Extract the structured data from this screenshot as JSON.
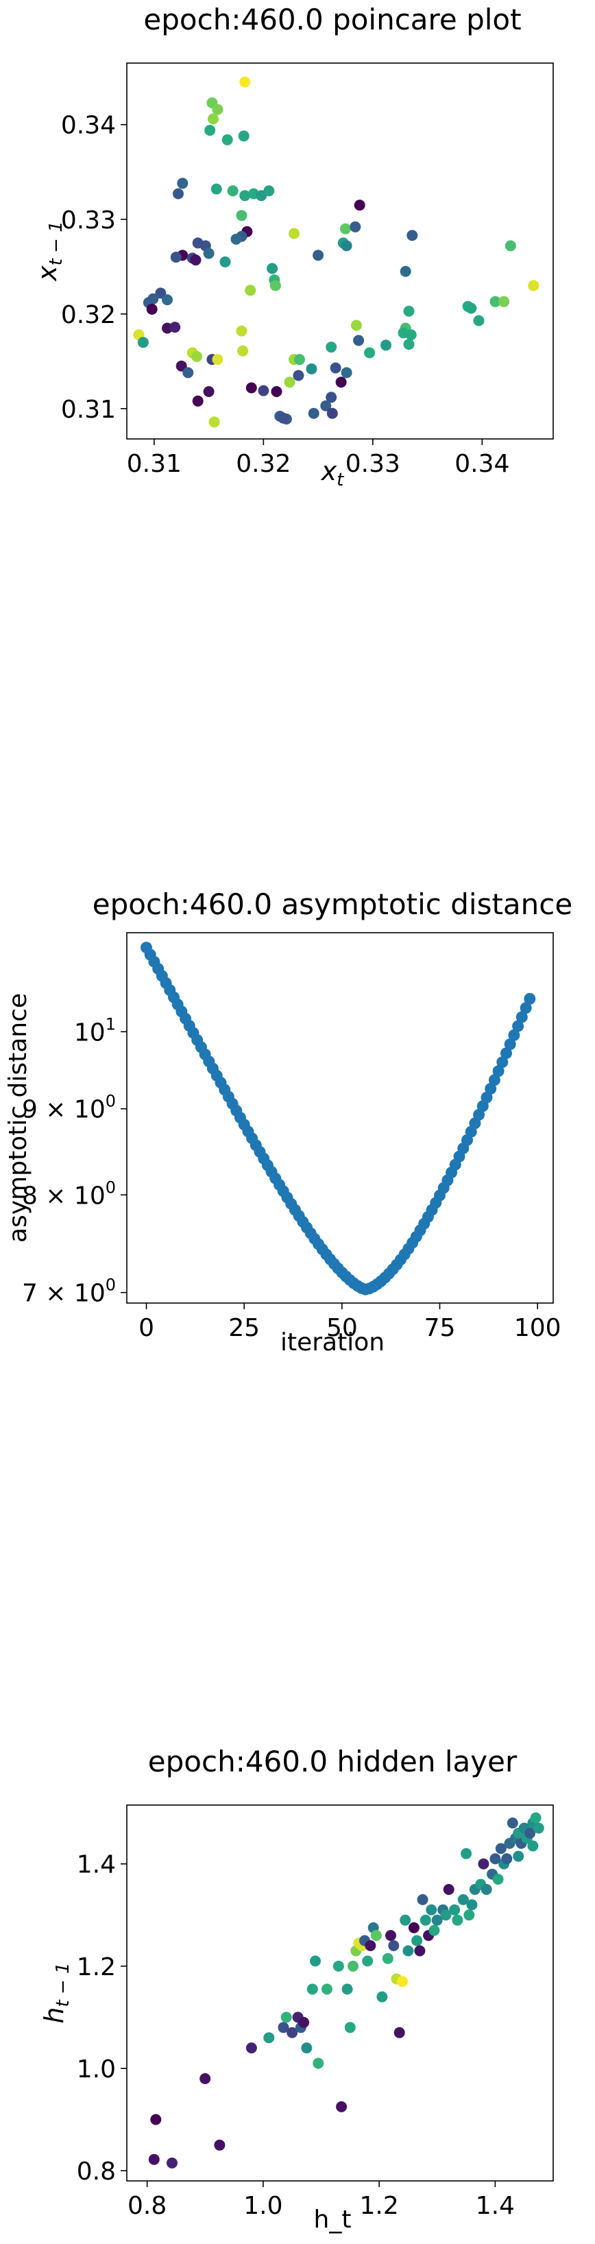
{
  "chart_data": [
    {
      "type": "scatter",
      "title": "epoch:460.0 poincare plot",
      "xlabel": "x",
      "xlabel_sub": "t",
      "ylabel": "x",
      "ylabel_sub": "t − 1",
      "xlim": [
        0.3075,
        0.3465
      ],
      "ylim": [
        0.3068,
        0.3465
      ],
      "xticks": [
        0.31,
        0.32,
        0.33,
        0.34
      ],
      "xtick_labels": [
        "0.31",
        "0.32",
        "0.33",
        "0.34"
      ],
      "yticks": [
        0.31,
        0.32,
        0.33,
        0.34
      ],
      "ytick_labels": [
        "0.31",
        "0.32",
        "0.33",
        "0.34"
      ],
      "colormap": "viridis",
      "grid": false,
      "points": [
        {
          "x": 0.3183,
          "y": 0.3445,
          "c": 1.0
        },
        {
          "x": 0.3153,
          "y": 0.3423,
          "c": 0.78
        },
        {
          "x": 0.3158,
          "y": 0.3416,
          "c": 0.8
        },
        {
          "x": 0.3154,
          "y": 0.3406,
          "c": 0.83
        },
        {
          "x": 0.3151,
          "y": 0.3394,
          "c": 0.62
        },
        {
          "x": 0.3167,
          "y": 0.3384,
          "c": 0.62
        },
        {
          "x": 0.3182,
          "y": 0.3388,
          "c": 0.6
        },
        {
          "x": 0.3126,
          "y": 0.3338,
          "c": 0.33
        },
        {
          "x": 0.3122,
          "y": 0.3327,
          "c": 0.28
        },
        {
          "x": 0.3157,
          "y": 0.3332,
          "c": 0.6
        },
        {
          "x": 0.3172,
          "y": 0.333,
          "c": 0.65
        },
        {
          "x": 0.3183,
          "y": 0.3325,
          "c": 0.6
        },
        {
          "x": 0.3191,
          "y": 0.3327,
          "c": 0.62
        },
        {
          "x": 0.3198,
          "y": 0.3325,
          "c": 0.55
        },
        {
          "x": 0.3205,
          "y": 0.333,
          "c": 0.58
        },
        {
          "x": 0.318,
          "y": 0.3304,
          "c": 0.7
        },
        {
          "x": 0.3288,
          "y": 0.3315,
          "c": 0.0
        },
        {
          "x": 0.3275,
          "y": 0.329,
          "c": 0.75
        },
        {
          "x": 0.3284,
          "y": 0.3292,
          "c": 0.3
        },
        {
          "x": 0.3336,
          "y": 0.3283,
          "c": 0.3
        },
        {
          "x": 0.3228,
          "y": 0.3285,
          "c": 0.9
        },
        {
          "x": 0.3185,
          "y": 0.3287,
          "c": 0.0
        },
        {
          "x": 0.318,
          "y": 0.3282,
          "c": 0.3
        },
        {
          "x": 0.3175,
          "y": 0.3279,
          "c": 0.35
        },
        {
          "x": 0.3273,
          "y": 0.3275,
          "c": 0.55
        },
        {
          "x": 0.3276,
          "y": 0.3272,
          "c": 0.45
        },
        {
          "x": 0.3147,
          "y": 0.3272,
          "c": 0.25
        },
        {
          "x": 0.314,
          "y": 0.3275,
          "c": 0.25
        },
        {
          "x": 0.315,
          "y": 0.3264,
          "c": 0.35
        },
        {
          "x": 0.3126,
          "y": 0.3262,
          "c": 0.0
        },
        {
          "x": 0.3135,
          "y": 0.3259,
          "c": 0.2
        },
        {
          "x": 0.3138,
          "y": 0.3257,
          "c": 0.05
        },
        {
          "x": 0.312,
          "y": 0.326,
          "c": 0.25
        },
        {
          "x": 0.3165,
          "y": 0.3255,
          "c": 0.55
        },
        {
          "x": 0.325,
          "y": 0.3262,
          "c": 0.3
        },
        {
          "x": 0.3426,
          "y": 0.3272,
          "c": 0.7
        },
        {
          "x": 0.3208,
          "y": 0.3248,
          "c": 0.55
        },
        {
          "x": 0.333,
          "y": 0.3245,
          "c": 0.35
        },
        {
          "x": 0.321,
          "y": 0.3236,
          "c": 0.65
        },
        {
          "x": 0.3211,
          "y": 0.323,
          "c": 0.75
        },
        {
          "x": 0.3447,
          "y": 0.323,
          "c": 0.95
        },
        {
          "x": 0.3188,
          "y": 0.3225,
          "c": 0.85
        },
        {
          "x": 0.3106,
          "y": 0.3222,
          "c": 0.25
        },
        {
          "x": 0.3099,
          "y": 0.3216,
          "c": 0.3
        },
        {
          "x": 0.3112,
          "y": 0.3215,
          "c": 0.35
        },
        {
          "x": 0.3095,
          "y": 0.3212,
          "c": 0.3
        },
        {
          "x": 0.3412,
          "y": 0.3213,
          "c": 0.7
        },
        {
          "x": 0.342,
          "y": 0.3213,
          "c": 0.8
        },
        {
          "x": 0.3387,
          "y": 0.3208,
          "c": 0.62
        },
        {
          "x": 0.339,
          "y": 0.3206,
          "c": 0.6
        },
        {
          "x": 0.3098,
          "y": 0.3205,
          "c": 0.0
        },
        {
          "x": 0.3333,
          "y": 0.3203,
          "c": 0.62
        },
        {
          "x": 0.3397,
          "y": 0.3193,
          "c": 0.6
        },
        {
          "x": 0.3285,
          "y": 0.3188,
          "c": 0.85
        },
        {
          "x": 0.333,
          "y": 0.3185,
          "c": 0.7
        },
        {
          "x": 0.3328,
          "y": 0.318,
          "c": 0.62
        },
        {
          "x": 0.3335,
          "y": 0.3178,
          "c": 0.62
        },
        {
          "x": 0.3112,
          "y": 0.3185,
          "c": 0.05
        },
        {
          "x": 0.3119,
          "y": 0.3186,
          "c": 0.1
        },
        {
          "x": 0.318,
          "y": 0.3182,
          "c": 0.9
        },
        {
          "x": 0.3287,
          "y": 0.3172,
          "c": 0.3
        },
        {
          "x": 0.3086,
          "y": 0.3178,
          "c": 0.95
        },
        {
          "x": 0.309,
          "y": 0.317,
          "c": 0.55
        },
        {
          "x": 0.3312,
          "y": 0.3167,
          "c": 0.55
        },
        {
          "x": 0.3262,
          "y": 0.3165,
          "c": 0.6
        },
        {
          "x": 0.3333,
          "y": 0.3168,
          "c": 0.62
        },
        {
          "x": 0.3297,
          "y": 0.3159,
          "c": 0.62
        },
        {
          "x": 0.3181,
          "y": 0.3161,
          "c": 0.9
        },
        {
          "x": 0.3135,
          "y": 0.3159,
          "c": 0.9
        },
        {
          "x": 0.3139,
          "y": 0.3155,
          "c": 0.85
        },
        {
          "x": 0.3153,
          "y": 0.3152,
          "c": 0.2
        },
        {
          "x": 0.3158,
          "y": 0.3152,
          "c": 0.95
        },
        {
          "x": 0.3228,
          "y": 0.3152,
          "c": 0.85
        },
        {
          "x": 0.3233,
          "y": 0.3152,
          "c": 0.7
        },
        {
          "x": 0.3244,
          "y": 0.3142,
          "c": 0.5
        },
        {
          "x": 0.3232,
          "y": 0.3135,
          "c": 0.25
        },
        {
          "x": 0.3125,
          "y": 0.3145,
          "c": 0.05
        },
        {
          "x": 0.3131,
          "y": 0.3138,
          "c": 0.3
        },
        {
          "x": 0.3266,
          "y": 0.3143,
          "c": 0.25
        },
        {
          "x": 0.3276,
          "y": 0.3138,
          "c": 0.35
        },
        {
          "x": 0.3271,
          "y": 0.3128,
          "c": 0.0
        },
        {
          "x": 0.3224,
          "y": 0.3128,
          "c": 0.85
        },
        {
          "x": 0.3189,
          "y": 0.3122,
          "c": 0.0
        },
        {
          "x": 0.32,
          "y": 0.3119,
          "c": 0.2
        },
        {
          "x": 0.3212,
          "y": 0.3118,
          "c": 0.0
        },
        {
          "x": 0.315,
          "y": 0.3118,
          "c": 0.05
        },
        {
          "x": 0.314,
          "y": 0.3108,
          "c": 0.0
        },
        {
          "x": 0.3262,
          "y": 0.3112,
          "c": 0.25
        },
        {
          "x": 0.3257,
          "y": 0.3103,
          "c": 0.3
        },
        {
          "x": 0.3263,
          "y": 0.3095,
          "c": 0.2
        },
        {
          "x": 0.3246,
          "y": 0.3095,
          "c": 0.3
        },
        {
          "x": 0.3215,
          "y": 0.3092,
          "c": 0.3
        },
        {
          "x": 0.3221,
          "y": 0.3089,
          "c": 0.3
        },
        {
          "x": 0.3155,
          "y": 0.3086,
          "c": 0.9
        },
        {
          "x": 0.3218,
          "y": 0.309,
          "c": 0.25
        }
      ]
    },
    {
      "type": "scatter",
      "title": "epoch:460.0 asymptotic distance",
      "xlabel": "iteration",
      "ylabel": "asymptotic distance",
      "yscale": "log",
      "xlim": [
        -5,
        104
      ],
      "ylim": [
        6.9,
        11.45
      ],
      "xticks": [
        0,
        25,
        50,
        75,
        100
      ],
      "xtick_labels": [
        "0",
        "25",
        "50",
        "75",
        "100"
      ],
      "yticks": [
        7,
        8,
        9,
        10
      ],
      "ytick_labels": [
        {
          "base": "7 × 10",
          "exp": "0"
        },
        {
          "base": "8 × 10",
          "exp": "0"
        },
        {
          "base": "9 × 10",
          "exp": "0"
        },
        {
          "base": "10",
          "exp": "1"
        }
      ],
      "color": "#1f77b4",
      "grid": false,
      "x_start": 0,
      "x_end": 98,
      "y_min_at": 56,
      "y_start": 11.22,
      "y_min": 7.03,
      "y_end": 10.46
    },
    {
      "type": "scatter",
      "title": "epoch:460.0 hidden layer",
      "xlabel": "h_t",
      "ylabel": "h",
      "ylabel_sub": "t − 1",
      "xlim": [
        0.765,
        1.5
      ],
      "ylim": [
        0.78,
        1.515
      ],
      "xticks": [
        0.8,
        1.0,
        1.2,
        1.4
      ],
      "xtick_labels": [
        "0.8",
        "1.0",
        "1.2",
        "1.4"
      ],
      "yticks": [
        0.8,
        1.0,
        1.2,
        1.4
      ],
      "ytick_labels": [
        "0.8",
        "1.0",
        "1.2",
        "1.4"
      ],
      "colormap": "viridis",
      "grid": false,
      "points": [
        {
          "x": 0.815,
          "y": 0.9,
          "c": 0.0
        },
        {
          "x": 0.812,
          "y": 0.822,
          "c": 0.05
        },
        {
          "x": 0.843,
          "y": 0.815,
          "c": 0.1
        },
        {
          "x": 0.9,
          "y": 0.98,
          "c": 0.05
        },
        {
          "x": 0.925,
          "y": 0.85,
          "c": 0.05
        },
        {
          "x": 0.98,
          "y": 1.04,
          "c": 0.1
        },
        {
          "x": 1.01,
          "y": 1.06,
          "c": 0.55
        },
        {
          "x": 1.035,
          "y": 1.08,
          "c": 0.25
        },
        {
          "x": 1.04,
          "y": 1.1,
          "c": 0.65
        },
        {
          "x": 1.05,
          "y": 1.07,
          "c": 0.2
        },
        {
          "x": 1.06,
          "y": 1.1,
          "c": 0.1
        },
        {
          "x": 1.065,
          "y": 1.08,
          "c": 0.3
        },
        {
          "x": 1.07,
          "y": 1.09,
          "c": 0.05
        },
        {
          "x": 1.075,
          "y": 1.04,
          "c": 0.5
        },
        {
          "x": 1.085,
          "y": 1.155,
          "c": 0.6
        },
        {
          "x": 1.09,
          "y": 1.21,
          "c": 0.55
        },
        {
          "x": 1.095,
          "y": 1.01,
          "c": 0.65
        },
        {
          "x": 1.11,
          "y": 1.155,
          "c": 0.65
        },
        {
          "x": 1.13,
          "y": 1.2,
          "c": 0.6
        },
        {
          "x": 1.135,
          "y": 0.925,
          "c": 0.05
        },
        {
          "x": 1.145,
          "y": 1.155,
          "c": 0.55
        },
        {
          "x": 1.15,
          "y": 1.08,
          "c": 0.6
        },
        {
          "x": 1.155,
          "y": 1.2,
          "c": 0.7
        },
        {
          "x": 1.16,
          "y": 1.23,
          "c": 0.8
        },
        {
          "x": 1.165,
          "y": 1.245,
          "c": 0.95
        },
        {
          "x": 1.17,
          "y": 1.24,
          "c": 0.95
        },
        {
          "x": 1.175,
          "y": 1.25,
          "c": 0.3
        },
        {
          "x": 1.18,
          "y": 1.21,
          "c": 0.6
        },
        {
          "x": 1.185,
          "y": 1.24,
          "c": 0.05
        },
        {
          "x": 1.19,
          "y": 1.275,
          "c": 0.4
        },
        {
          "x": 1.195,
          "y": 1.26,
          "c": 0.75
        },
        {
          "x": 1.205,
          "y": 1.14,
          "c": 0.55
        },
        {
          "x": 1.215,
          "y": 1.215,
          "c": 0.65
        },
        {
          "x": 1.22,
          "y": 1.26,
          "c": 0.05
        },
        {
          "x": 1.225,
          "y": 1.24,
          "c": 0.25
        },
        {
          "x": 1.23,
          "y": 1.175,
          "c": 0.9
        },
        {
          "x": 1.235,
          "y": 1.07,
          "c": 0.05
        },
        {
          "x": 1.24,
          "y": 1.17,
          "c": 1.0
        },
        {
          "x": 1.245,
          "y": 1.29,
          "c": 0.55
        },
        {
          "x": 1.25,
          "y": 1.23,
          "c": 0.5
        },
        {
          "x": 1.26,
          "y": 1.275,
          "c": 0.0
        },
        {
          "x": 1.265,
          "y": 1.25,
          "c": 0.55
        },
        {
          "x": 1.27,
          "y": 1.23,
          "c": 0.05
        },
        {
          "x": 1.275,
          "y": 1.33,
          "c": 0.3
        },
        {
          "x": 1.28,
          "y": 1.29,
          "c": 0.55
        },
        {
          "x": 1.285,
          "y": 1.26,
          "c": 0.05
        },
        {
          "x": 1.29,
          "y": 1.31,
          "c": 0.5
        },
        {
          "x": 1.295,
          "y": 1.27,
          "c": 0.6
        },
        {
          "x": 1.3,
          "y": 1.29,
          "c": 0.45
        },
        {
          "x": 1.31,
          "y": 1.31,
          "c": 0.4
        },
        {
          "x": 1.315,
          "y": 1.3,
          "c": 0.55
        },
        {
          "x": 1.32,
          "y": 1.35,
          "c": 0.05
        },
        {
          "x": 1.33,
          "y": 1.31,
          "c": 0.55
        },
        {
          "x": 1.335,
          "y": 1.29,
          "c": 0.6
        },
        {
          "x": 1.345,
          "y": 1.33,
          "c": 0.5
        },
        {
          "x": 1.35,
          "y": 1.42,
          "c": 0.55
        },
        {
          "x": 1.355,
          "y": 1.3,
          "c": 0.6
        },
        {
          "x": 1.36,
          "y": 1.32,
          "c": 0.5
        },
        {
          "x": 1.365,
          "y": 1.35,
          "c": 0.45
        },
        {
          "x": 1.375,
          "y": 1.36,
          "c": 0.55
        },
        {
          "x": 1.38,
          "y": 1.4,
          "c": 0.1
        },
        {
          "x": 1.385,
          "y": 1.35,
          "c": 0.45
        },
        {
          "x": 1.395,
          "y": 1.38,
          "c": 0.35
        },
        {
          "x": 1.405,
          "y": 1.37,
          "c": 0.6
        },
        {
          "x": 1.41,
          "y": 1.43,
          "c": 0.3
        },
        {
          "x": 1.415,
          "y": 1.4,
          "c": 0.5
        },
        {
          "x": 1.42,
          "y": 1.41,
          "c": 0.3
        },
        {
          "x": 1.425,
          "y": 1.44,
          "c": 0.35
        },
        {
          "x": 1.43,
          "y": 1.48,
          "c": 0.3
        },
        {
          "x": 1.435,
          "y": 1.45,
          "c": 0.4
        },
        {
          "x": 1.44,
          "y": 1.46,
          "c": 0.55
        },
        {
          "x": 1.445,
          "y": 1.44,
          "c": 0.3
        },
        {
          "x": 1.45,
          "y": 1.47,
          "c": 0.45
        },
        {
          "x": 1.455,
          "y": 1.45,
          "c": 0.55
        },
        {
          "x": 1.46,
          "y": 1.46,
          "c": 0.3
        },
        {
          "x": 1.465,
          "y": 1.48,
          "c": 0.5
        },
        {
          "x": 1.47,
          "y": 1.49,
          "c": 0.6
        },
        {
          "x": 1.475,
          "y": 1.47,
          "c": 0.55
        },
        {
          "x": 1.465,
          "y": 1.435,
          "c": 0.55
        },
        {
          "x": 1.44,
          "y": 1.415,
          "c": 0.5
        },
        {
          "x": 1.4,
          "y": 1.41,
          "c": 0.3
        }
      ]
    }
  ]
}
